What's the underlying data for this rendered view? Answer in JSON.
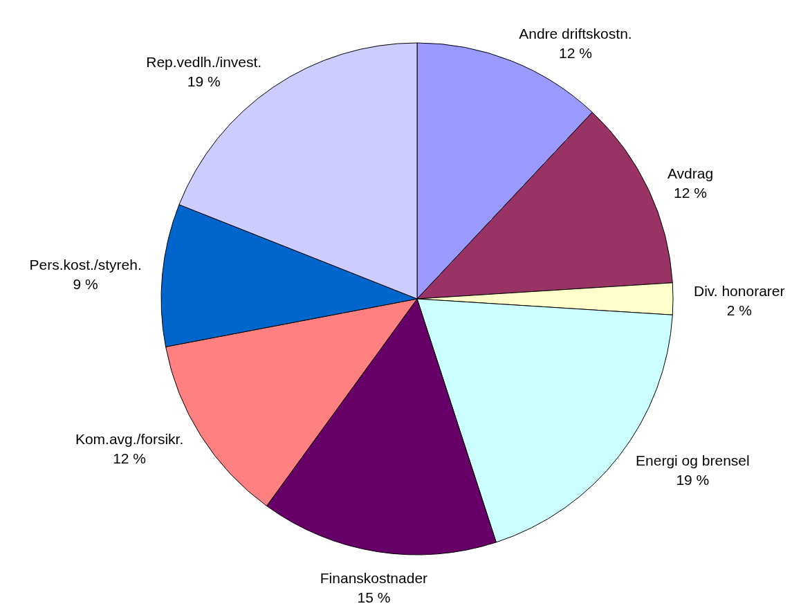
{
  "chart_data": {
    "type": "pie",
    "categories": [
      "Andre driftskostn.",
      "Avdrag",
      "Div. honorarer",
      "Energi og brensel",
      "Finanskostnader",
      "Kom.avg./forsikr.",
      "Pers.kost./styreh.",
      "Rep.vedlh./invest."
    ],
    "values": [
      12,
      12,
      2,
      19,
      15,
      12,
      9,
      19
    ],
    "value_labels": [
      "12 %",
      "12 %",
      "2 %",
      "19 %",
      "15 %",
      "12 %",
      "9 %",
      "19 %"
    ],
    "colors": [
      "#9999ff",
      "#993366",
      "#ffffcc",
      "#ccffff",
      "#660066",
      "#ff8080",
      "#0066cc",
      "#ccccff"
    ]
  }
}
